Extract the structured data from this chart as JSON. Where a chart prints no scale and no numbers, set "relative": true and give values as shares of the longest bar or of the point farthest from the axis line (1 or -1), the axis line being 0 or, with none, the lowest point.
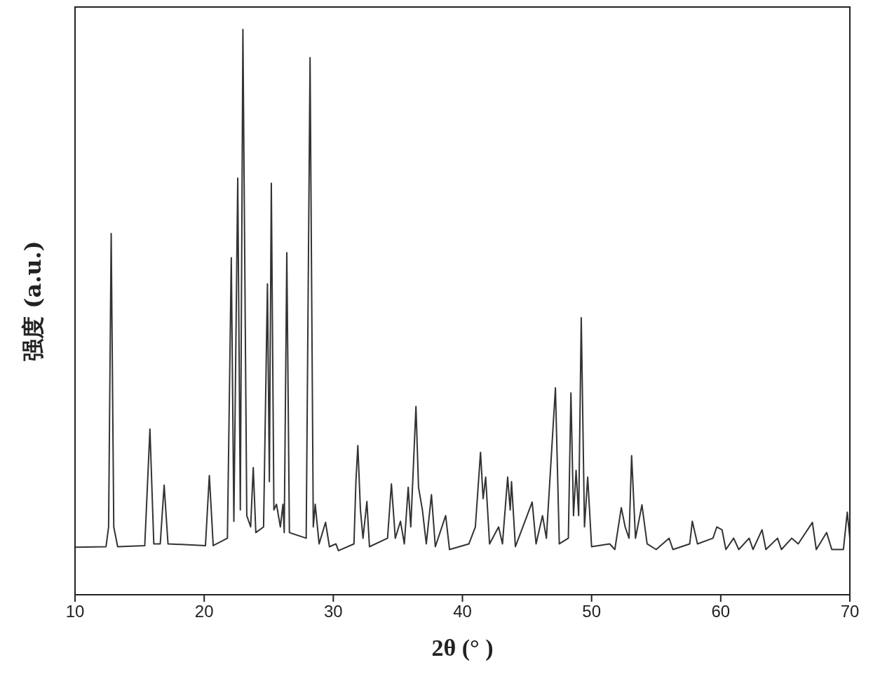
{
  "chart_data": {
    "type": "line",
    "relative": true,
    "xlabel": "2θ (° )",
    "ylabel": "强度 (a.u.)",
    "xlim": [
      10,
      70
    ],
    "xticks": [
      10,
      20,
      30,
      40,
      50,
      60,
      70
    ],
    "x": [
      10,
      12.4,
      12.6,
      12.8,
      13.0,
      13.3,
      15.4,
      15.8,
      16.1,
      16.6,
      16.9,
      17.2,
      20.1,
      20.4,
      20.7,
      21.8,
      22.1,
      22.3,
      22.6,
      22.8,
      23.0,
      23.3,
      23.6,
      23.8,
      24.0,
      24.6,
      24.9,
      25.05,
      25.2,
      25.4,
      25.6,
      25.9,
      26.1,
      26.2,
      26.4,
      26.6,
      27.9,
      28.2,
      28.45,
      28.6,
      28.9,
      29.4,
      29.7,
      30.2,
      30.4,
      31.6,
      31.75,
      31.9,
      32.1,
      32.3,
      32.6,
      32.8,
      34.2,
      34.5,
      34.8,
      35.2,
      35.5,
      35.8,
      36.0,
      36.4,
      36.6,
      36.9,
      37.2,
      37.6,
      37.9,
      38.7,
      39.0,
      40.5,
      41.0,
      41.4,
      41.6,
      41.8,
      42.1,
      42.8,
      43.1,
      43.5,
      43.7,
      43.8,
      44.1,
      45.4,
      45.7,
      46.2,
      46.5,
      47.2,
      47.5,
      48.2,
      48.4,
      48.6,
      48.8,
      49.0,
      49.2,
      49.45,
      49.7,
      50.0,
      51.4,
      51.8,
      52.3,
      52.6,
      52.9,
      53.1,
      53.4,
      53.9,
      54.3,
      55.0,
      56.0,
      56.3,
      57.6,
      57.8,
      58.2,
      59.4,
      59.7,
      60.1,
      60.4,
      61.0,
      61.4,
      62.2,
      62.5,
      63.2,
      63.5,
      64.4,
      64.7,
      65.5,
      66.0,
      67.1,
      67.4,
      68.2,
      68.6,
      69.5,
      69.8,
      70
    ],
    "series": [
      {
        "color": "#333333",
        "values": [
          0.084,
          0.085,
          0.12,
          0.639,
          0.12,
          0.085,
          0.087,
          0.293,
          0.09,
          0.09,
          0.194,
          0.09,
          0.087,
          0.211,
          0.087,
          0.1,
          0.596,
          0.13,
          0.737,
          0.15,
          1,
          0.14,
          0.12,
          0.225,
          0.11,
          0.12,
          0.55,
          0.2,
          0.728,
          0.15,
          0.16,
          0.12,
          0.16,
          0.11,
          0.605,
          0.11,
          0.1,
          0.95,
          0.12,
          0.16,
          0.09,
          0.128,
          0.085,
          0.09,
          0.078,
          0.09,
          0.2,
          0.264,
          0.15,
          0.1,
          0.165,
          0.085,
          0.1,
          0.196,
          0.1,
          0.13,
          0.09,
          0.19,
          0.12,
          0.333,
          0.19,
          0.15,
          0.09,
          0.177,
          0.085,
          0.14,
          0.08,
          0.09,
          0.12,
          0.252,
          0.17,
          0.208,
          0.09,
          0.12,
          0.09,
          0.208,
          0.15,
          0.2,
          0.085,
          0.164,
          0.09,
          0.14,
          0.1,
          0.366,
          0.09,
          0.1,
          0.357,
          0.14,
          0.22,
          0.14,
          0.49,
          0.12,
          0.208,
          0.085,
          0.09,
          0.08,
          0.154,
          0.12,
          0.1,
          0.246,
          0.1,
          0.159,
          0.09,
          0.08,
          0.1,
          0.08,
          0.09,
          0.13,
          0.09,
          0.1,
          0.12,
          0.115,
          0.08,
          0.1,
          0.08,
          0.1,
          0.08,
          0.115,
          0.08,
          0.1,
          0.08,
          0.1,
          0.09,
          0.128,
          0.08,
          0.11,
          0.08,
          0.08,
          0.146,
          0.1
        ]
      }
    ]
  }
}
